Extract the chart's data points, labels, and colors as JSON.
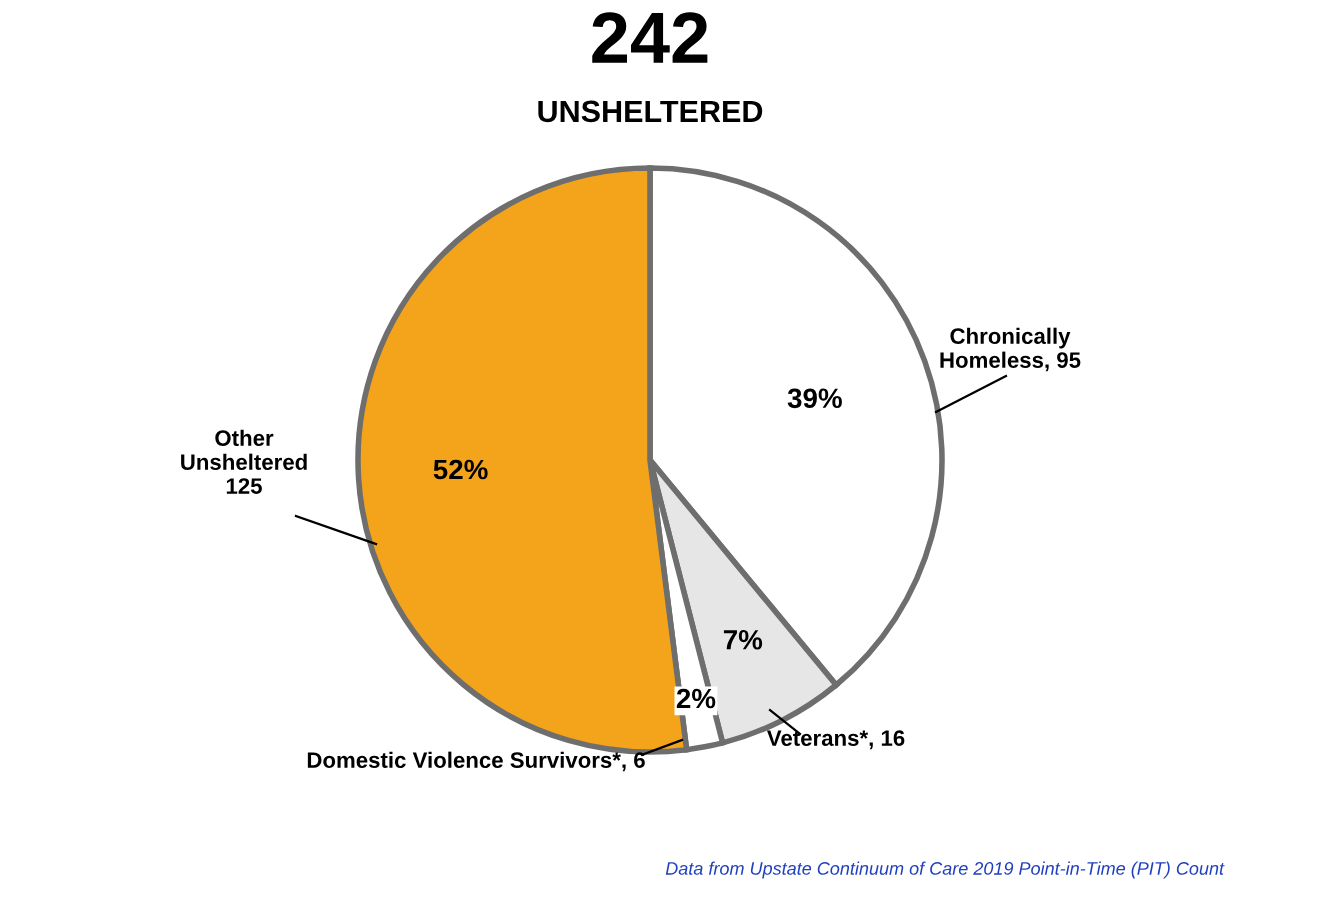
{
  "chart_data": {
    "type": "pie",
    "title": "242",
    "subtitle": "UNSHELTERED",
    "categories": [
      "Chronically\nHomeless, 95",
      "Veterans*, 16",
      "Domestic Violence Survivors*, 6",
      "Other\nUnsheltered\n125"
    ],
    "values": [
      39,
      7,
      2,
      52
    ],
    "colors": [
      "#ffffff",
      "#e6e6e6",
      "#ffffff",
      "#f3a41b"
    ],
    "value_labels": [
      "39%",
      "7%",
      "2%",
      "52%"
    ],
    "annotations": [
      "Data from Upstate Continuum of Care 2019 Point-in-Time (PIT) Count"
    ],
    "legend": false
  }
}
